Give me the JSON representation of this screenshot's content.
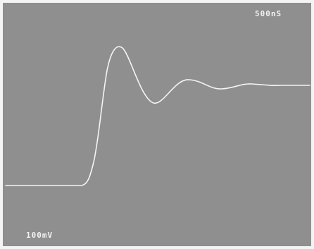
{
  "screen": {
    "timebase": "500nS",
    "voltage_scale": "100mV"
  }
}
